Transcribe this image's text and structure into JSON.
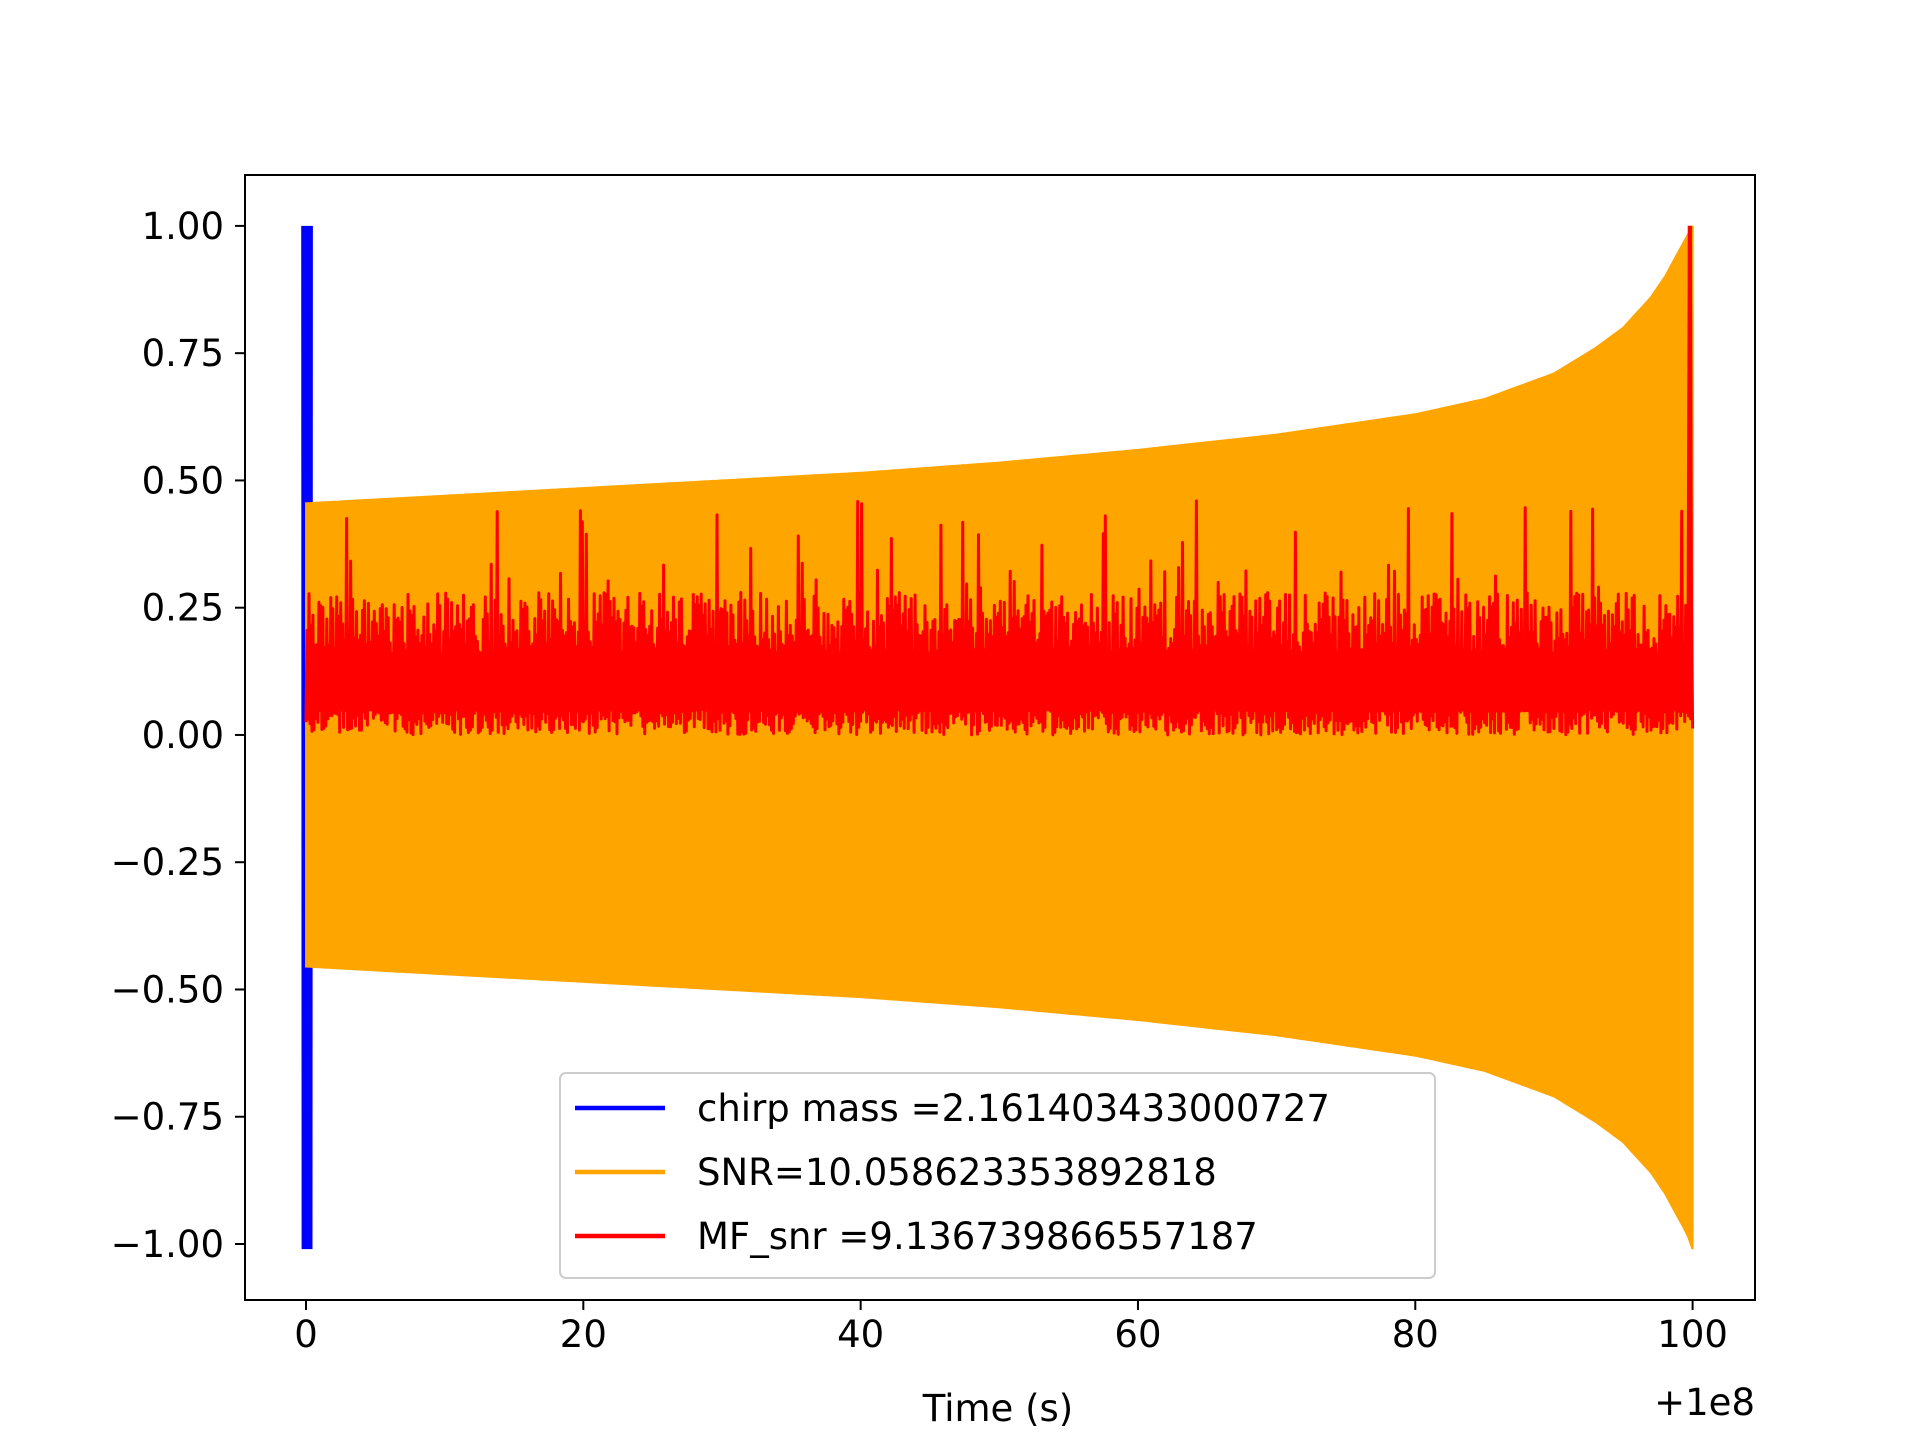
{
  "chart_data": {
    "type": "line",
    "title": "",
    "xlabel": "Time (s)",
    "ylabel": "",
    "x_offset_label": "+1e8",
    "xlim": [
      -4.4,
      104.5
    ],
    "ylim": [
      -1.11,
      1.1
    ],
    "xticks": [
      0,
      20,
      40,
      60,
      80,
      100
    ],
    "xtick_labels": [
      "0",
      "20",
      "40",
      "60",
      "80",
      "100"
    ],
    "yticks": [
      1.0,
      0.75,
      0.5,
      0.25,
      0.0,
      -0.25,
      -0.5,
      -0.75,
      -1.0
    ],
    "ytick_labels": [
      "1.00",
      "0.75",
      "0.50",
      "0.25",
      "0.00",
      "−0.25",
      "−0.50",
      "−0.75",
      "−1.00"
    ],
    "grid": false,
    "legend_position": "lower-center",
    "series": [
      {
        "name": "chirp mass =2.161403433000727",
        "color": "#0000ff",
        "kind": "spike",
        "x": [
          -0.2,
          0.35
        ],
        "y_min": -1.01,
        "y_max": 1.0
      },
      {
        "name": "SNR=10.058623353892818",
        "color": "#ffa500",
        "kind": "oscillation-envelope",
        "x": [
          0,
          10,
          20,
          30,
          40,
          50,
          60,
          70,
          80,
          85,
          90,
          93,
          95,
          97,
          98,
          99,
          99.6,
          100
        ],
        "y_upper": [
          0.455,
          0.47,
          0.485,
          0.5,
          0.515,
          0.535,
          0.56,
          0.59,
          0.63,
          0.66,
          0.71,
          0.76,
          0.8,
          0.86,
          0.9,
          0.95,
          0.98,
          1.0
        ],
        "y_lower": [
          -0.455,
          -0.47,
          -0.485,
          -0.5,
          -0.515,
          -0.535,
          -0.56,
          -0.59,
          -0.63,
          -0.66,
          -0.71,
          -0.76,
          -0.8,
          -0.86,
          -0.9,
          -0.95,
          -0.98,
          -1.01
        ]
      },
      {
        "name": "MF_snr =9.136739866557187",
        "color": "#ff0000",
        "kind": "noise-band",
        "x_range": [
          0,
          100
        ],
        "y_min": 0.0,
        "y_typical_max": 0.28,
        "y_peak_max": 0.46,
        "final_peak": {
          "x": 99.8,
          "y": 1.0
        }
      }
    ]
  }
}
